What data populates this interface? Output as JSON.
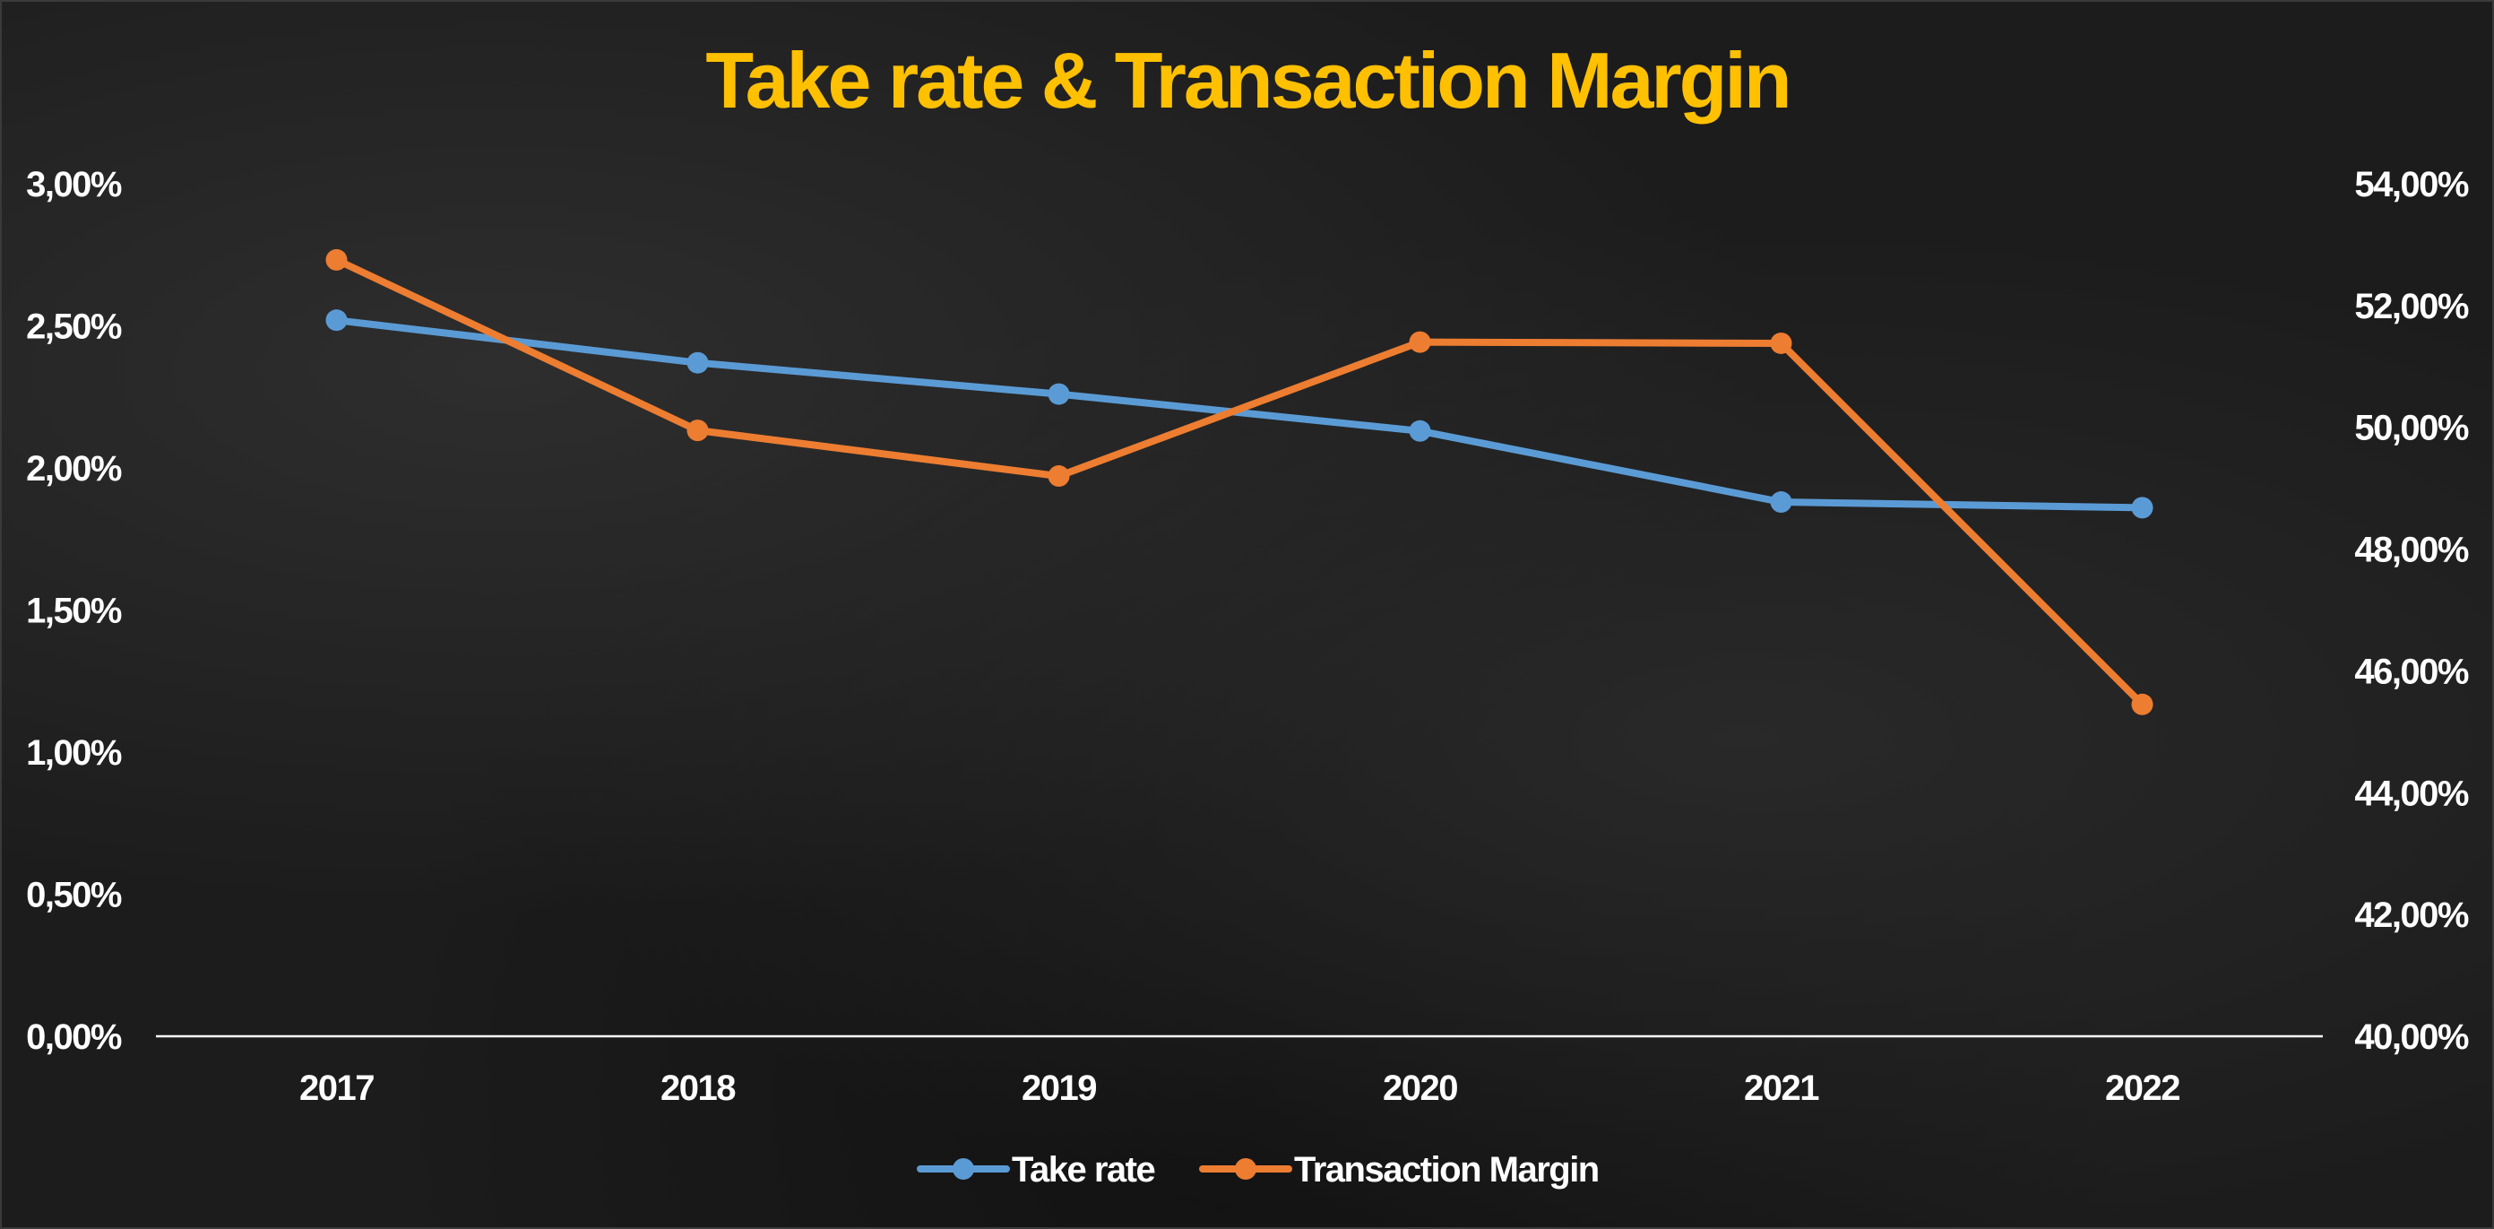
{
  "colors": {
    "title": "#FFC000",
    "take_rate": "#5B9BD5",
    "transaction_margin": "#ED7D31",
    "axis": "#ffffff",
    "text": "#ffffff"
  },
  "chart_data": {
    "type": "line",
    "title": "Take rate & Transaction Margin",
    "categories": [
      "2017",
      "2018",
      "2019",
      "2020",
      "2021",
      "2022"
    ],
    "series": [
      {
        "name": "Take rate",
        "axis": "left",
        "values": [
          0.0252,
          0.0237,
          0.0226,
          0.0213,
          0.0188,
          0.0186
        ]
      },
      {
        "name": "Transaction Margin",
        "axis": "right",
        "values": [
          0.5275,
          0.4995,
          0.492,
          0.514,
          0.5138,
          0.4545
        ]
      }
    ],
    "y_left": {
      "min": 0,
      "max": 0.03,
      "ticks": [
        "0,00%",
        "0,50%",
        "1,00%",
        "1,50%",
        "2,00%",
        "2,50%",
        "3,00%"
      ]
    },
    "y_right": {
      "min": 0.4,
      "max": 0.54,
      "ticks": [
        "40,00%",
        "42,00%",
        "44,00%",
        "46,00%",
        "48,00%",
        "50,00%",
        "52,00%",
        "54,00%"
      ]
    },
    "legend": [
      "Take rate",
      "Transaction Margin"
    ],
    "legend_position": "bottom",
    "grid": false
  }
}
